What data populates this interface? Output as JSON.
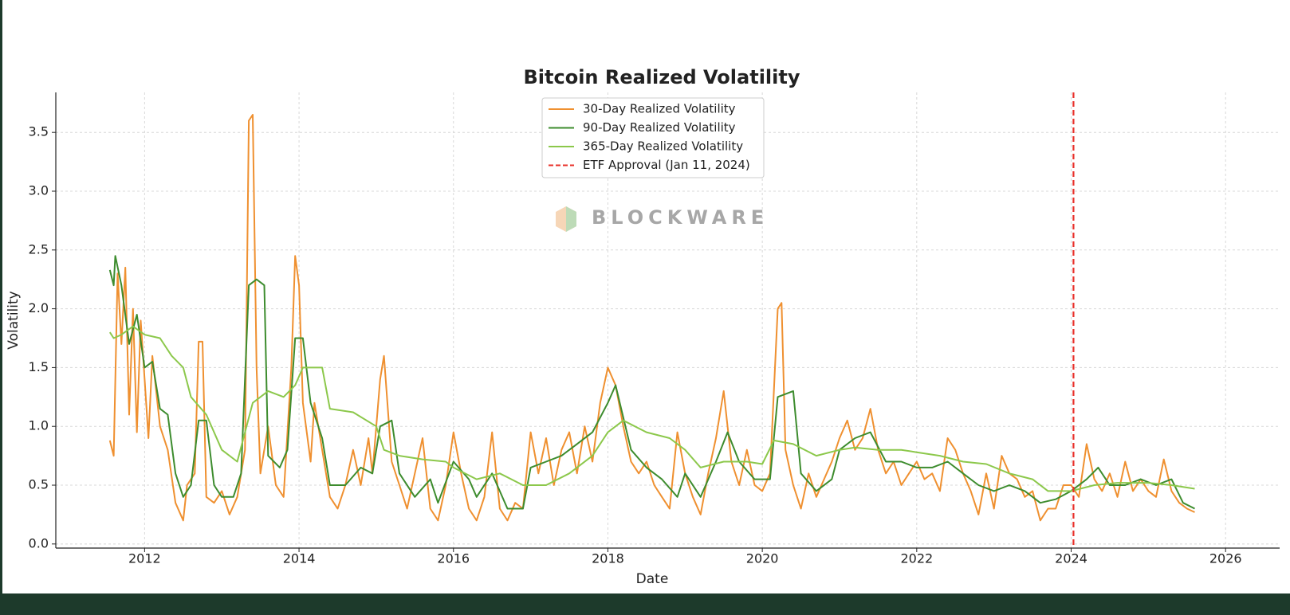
{
  "chart_data": {
    "type": "line",
    "title": "Bitcoin Realized Volatility",
    "xlabel": "Date",
    "ylabel": "Volatility",
    "watermark": "BLOCKWARE",
    "xlim": [
      2010.85,
      2026.7
    ],
    "xticks": [
      2012,
      2014,
      2016,
      2018,
      2020,
      2022,
      2024,
      2026
    ],
    "ylim": [
      -0.035,
      3.84
    ],
    "yticks": [
      {
        "value": 0,
        "label": "0.0"
      },
      0.5,
      {
        "value": 1,
        "label": "1.0"
      },
      1.5,
      {
        "value": 2,
        "label": "2.0"
      },
      2.5,
      {
        "value": 3,
        "label": "3.0"
      },
      3.5
    ],
    "grid": true,
    "legend": "upper center",
    "series": [
      {
        "name": "30-Day Realized Volatility",
        "color": "#ef9030",
        "x": [
          2011.55,
          2011.6,
          2011.65,
          2011.7,
          2011.75,
          2011.8,
          2011.85,
          2011.9,
          2011.95,
          2012.0,
          2012.05,
          2012.1,
          2012.2,
          2012.3,
          2012.4,
          2012.5,
          2012.55,
          2012.65,
          2012.7,
          2012.75,
          2012.8,
          2012.9,
          2013.0,
          2013.1,
          2013.2,
          2013.3,
          2013.35,
          2013.4,
          2013.45,
          2013.5,
          2013.6,
          2013.7,
          2013.8,
          2013.9,
          2013.95,
          2014.0,
          2014.05,
          2014.15,
          2014.2,
          2014.3,
          2014.4,
          2014.5,
          2014.6,
          2014.7,
          2014.8,
          2014.9,
          2014.95,
          2015.05,
          2015.1,
          2015.2,
          2015.3,
          2015.4,
          2015.5,
          2015.6,
          2015.7,
          2015.8,
          2015.9,
          2016.0,
          2016.1,
          2016.2,
          2016.3,
          2016.4,
          2016.5,
          2016.6,
          2016.7,
          2016.8,
          2016.9,
          2017.0,
          2017.1,
          2017.2,
          2017.3,
          2017.4,
          2017.5,
          2017.6,
          2017.7,
          2017.8,
          2017.9,
          2018.0,
          2018.1,
          2018.2,
          2018.3,
          2018.4,
          2018.5,
          2018.6,
          2018.7,
          2018.8,
          2018.9,
          2019.0,
          2019.1,
          2019.2,
          2019.3,
          2019.4,
          2019.5,
          2019.6,
          2019.7,
          2019.8,
          2019.9,
          2020.0,
          2020.1,
          2020.2,
          2020.25,
          2020.3,
          2020.4,
          2020.5,
          2020.6,
          2020.7,
          2020.8,
          2020.9,
          2021.0,
          2021.1,
          2021.2,
          2021.3,
          2021.4,
          2021.5,
          2021.6,
          2021.7,
          2021.8,
          2021.9,
          2022.0,
          2022.1,
          2022.2,
          2022.3,
          2022.4,
          2022.5,
          2022.6,
          2022.7,
          2022.8,
          2022.9,
          2023.0,
          2023.1,
          2023.2,
          2023.3,
          2023.4,
          2023.5,
          2023.6,
          2023.7,
          2023.8,
          2023.9,
          2024.0,
          2024.1,
          2024.2,
          2024.3,
          2024.4,
          2024.5,
          2024.6,
          2024.7,
          2024.8,
          2024.9,
          2025.0,
          2025.1,
          2025.2,
          2025.3,
          2025.4,
          2025.5,
          2025.6
        ],
        "values": [
          0.88,
          0.75,
          2.3,
          1.7,
          2.35,
          1.1,
          2.0,
          0.95,
          1.9,
          1.4,
          0.9,
          1.6,
          1.0,
          0.8,
          0.35,
          0.2,
          0.5,
          0.6,
          1.72,
          1.72,
          0.4,
          0.35,
          0.45,
          0.25,
          0.4,
          0.8,
          3.6,
          3.65,
          1.5,
          0.6,
          1.0,
          0.5,
          0.4,
          1.5,
          2.45,
          2.2,
          1.2,
          0.7,
          1.2,
          0.8,
          0.4,
          0.3,
          0.5,
          0.8,
          0.5,
          0.9,
          0.6,
          1.4,
          1.6,
          0.7,
          0.5,
          0.3,
          0.6,
          0.9,
          0.3,
          0.2,
          0.5,
          0.95,
          0.6,
          0.3,
          0.2,
          0.4,
          0.95,
          0.3,
          0.2,
          0.35,
          0.3,
          0.95,
          0.6,
          0.9,
          0.5,
          0.8,
          0.95,
          0.6,
          1.0,
          0.7,
          1.2,
          1.5,
          1.35,
          1.0,
          0.7,
          0.6,
          0.7,
          0.5,
          0.4,
          0.3,
          0.95,
          0.6,
          0.4,
          0.25,
          0.6,
          0.9,
          1.3,
          0.7,
          0.5,
          0.8,
          0.5,
          0.45,
          0.6,
          2.0,
          2.05,
          0.8,
          0.5,
          0.3,
          0.6,
          0.4,
          0.55,
          0.7,
          0.9,
          1.05,
          0.8,
          0.9,
          1.15,
          0.8,
          0.6,
          0.7,
          0.5,
          0.6,
          0.7,
          0.55,
          0.6,
          0.45,
          0.9,
          0.8,
          0.6,
          0.45,
          0.25,
          0.6,
          0.3,
          0.75,
          0.6,
          0.55,
          0.4,
          0.45,
          0.2,
          0.3,
          0.3,
          0.5,
          0.5,
          0.4,
          0.85,
          0.55,
          0.45,
          0.6,
          0.4,
          0.7,
          0.45,
          0.55,
          0.45,
          0.4,
          0.72,
          0.45,
          0.35,
          0.3,
          0.27
        ]
      },
      {
        "name": "90-Day Realized Volatility",
        "color": "#3d8c2e",
        "x": [
          2011.55,
          2011.6,
          2011.62,
          2011.7,
          2011.8,
          2011.9,
          2012.0,
          2012.1,
          2012.2,
          2012.3,
          2012.4,
          2012.5,
          2012.6,
          2012.7,
          2012.8,
          2012.9,
          2013.0,
          2013.15,
          2013.25,
          2013.35,
          2013.45,
          2013.55,
          2013.6,
          2013.75,
          2013.85,
          2013.95,
          2014.05,
          2014.15,
          2014.3,
          2014.4,
          2014.6,
          2014.8,
          2014.95,
          2015.05,
          2015.2,
          2015.3,
          2015.5,
          2015.7,
          2015.8,
          2016.0,
          2016.2,
          2016.3,
          2016.5,
          2016.7,
          2016.9,
          2017.0,
          2017.2,
          2017.4,
          2017.6,
          2017.8,
          2018.0,
          2018.1,
          2018.3,
          2018.5,
          2018.7,
          2018.9,
          2019.0,
          2019.2,
          2019.4,
          2019.55,
          2019.7,
          2019.9,
          2020.1,
          2020.2,
          2020.4,
          2020.5,
          2020.7,
          2020.9,
          2021.0,
          2021.2,
          2021.4,
          2021.6,
          2021.8,
          2022.0,
          2022.2,
          2022.4,
          2022.6,
          2022.8,
          2023.0,
          2023.2,
          2023.4,
          2023.6,
          2023.8,
          2024.0,
          2024.2,
          2024.35,
          2024.5,
          2024.7,
          2024.9,
          2025.1,
          2025.3,
          2025.45,
          2025.6
        ],
        "values": [
          2.33,
          2.2,
          2.45,
          2.2,
          1.7,
          1.95,
          1.5,
          1.55,
          1.15,
          1.1,
          0.6,
          0.4,
          0.5,
          1.05,
          1.05,
          0.5,
          0.4,
          0.4,
          0.6,
          2.2,
          2.25,
          2.2,
          0.75,
          0.65,
          0.8,
          1.75,
          1.75,
          1.2,
          0.9,
          0.5,
          0.5,
          0.65,
          0.6,
          1.0,
          1.05,
          0.6,
          0.4,
          0.55,
          0.35,
          0.7,
          0.55,
          0.4,
          0.6,
          0.3,
          0.3,
          0.65,
          0.7,
          0.75,
          0.85,
          0.95,
          1.2,
          1.35,
          0.8,
          0.65,
          0.55,
          0.4,
          0.6,
          0.4,
          0.7,
          0.95,
          0.7,
          0.55,
          0.55,
          1.25,
          1.3,
          0.6,
          0.45,
          0.55,
          0.8,
          0.9,
          0.95,
          0.7,
          0.7,
          0.65,
          0.65,
          0.7,
          0.6,
          0.5,
          0.45,
          0.5,
          0.45,
          0.35,
          0.38,
          0.45,
          0.55,
          0.65,
          0.5,
          0.5,
          0.55,
          0.5,
          0.55,
          0.35,
          0.3
        ]
      },
      {
        "name": "365-Day Realized Volatility",
        "color": "#8cc84b",
        "x": [
          2011.55,
          2011.6,
          2011.7,
          2011.85,
          2012.0,
          2012.2,
          2012.35,
          2012.5,
          2012.6,
          2012.8,
          2013.0,
          2013.2,
          2013.4,
          2013.6,
          2013.8,
          2013.95,
          2014.05,
          2014.3,
          2014.4,
          2014.7,
          2015.0,
          2015.1,
          2015.3,
          2015.6,
          2015.9,
          2016.0,
          2016.3,
          2016.6,
          2016.9,
          2017.2,
          2017.5,
          2017.8,
          2018.0,
          2018.2,
          2018.5,
          2018.8,
          2019.0,
          2019.2,
          2019.5,
          2019.8,
          2020.0,
          2020.15,
          2020.4,
          2020.7,
          2021.0,
          2021.2,
          2021.5,
          2021.8,
          2022.0,
          2022.3,
          2022.6,
          2022.9,
          2023.2,
          2023.5,
          2023.7,
          2024.0,
          2024.3,
          2024.6,
          2025.0,
          2025.3,
          2025.6
        ],
        "values": [
          1.8,
          1.75,
          1.78,
          1.85,
          1.78,
          1.75,
          1.6,
          1.5,
          1.25,
          1.1,
          0.8,
          0.7,
          1.2,
          1.3,
          1.25,
          1.35,
          1.5,
          1.5,
          1.15,
          1.12,
          1.0,
          0.8,
          0.75,
          0.72,
          0.7,
          0.65,
          0.55,
          0.6,
          0.5,
          0.5,
          0.6,
          0.75,
          0.95,
          1.05,
          0.95,
          0.9,
          0.8,
          0.65,
          0.7,
          0.7,
          0.68,
          0.88,
          0.85,
          0.75,
          0.8,
          0.82,
          0.8,
          0.8,
          0.78,
          0.75,
          0.7,
          0.68,
          0.6,
          0.55,
          0.45,
          0.45,
          0.5,
          0.52,
          0.52,
          0.5,
          0.47
        ]
      }
    ],
    "vlines": [
      {
        "name": "ETF Approval (Jan 11, 2024)",
        "x": 2024.03,
        "color": "#e8302a"
      }
    ]
  }
}
